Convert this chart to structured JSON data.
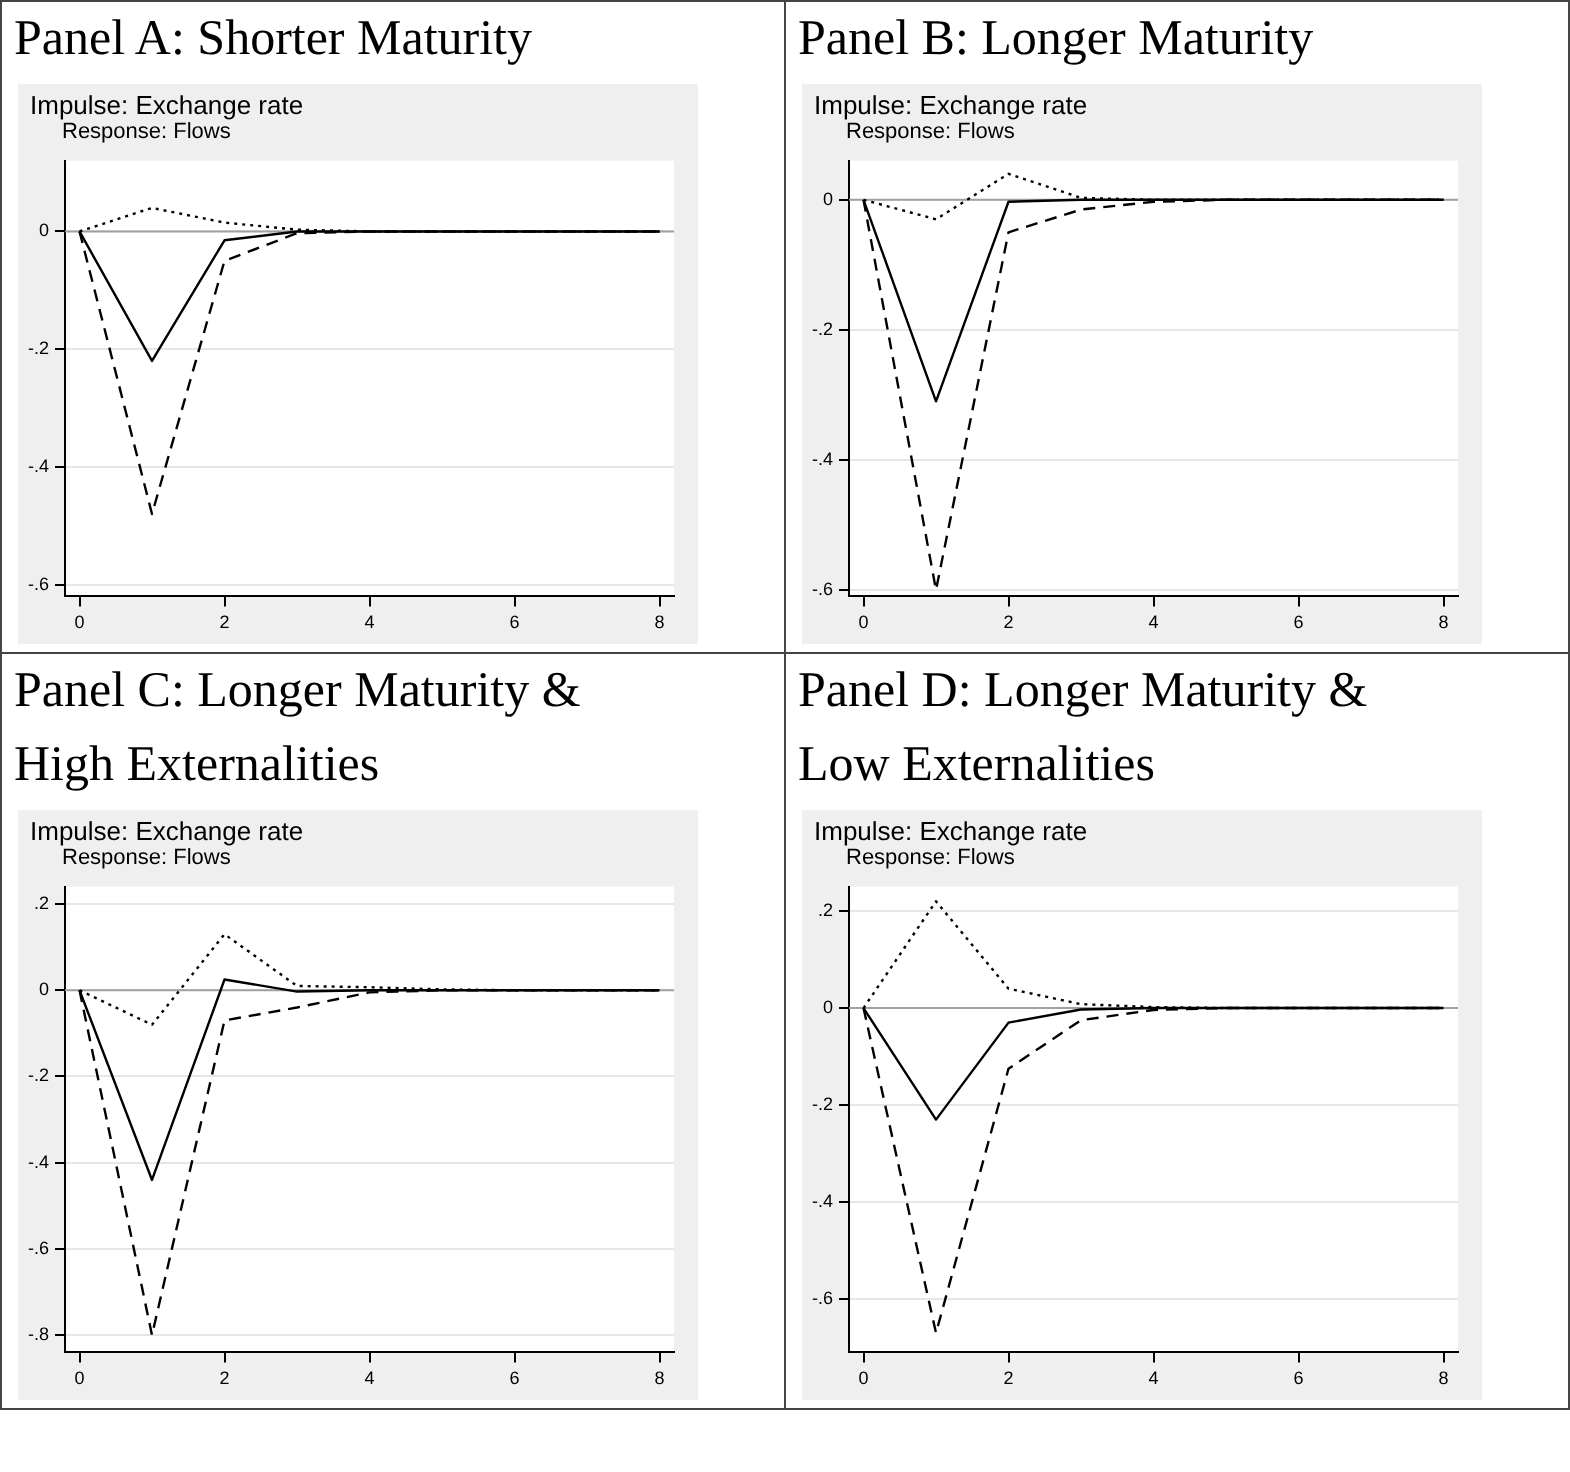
{
  "chart_data": [
    {
      "type": "line",
      "title": "Panel A: Shorter Maturity",
      "subtitle": "Impulse: Exchange rate",
      "annotations": [
        "Response: Flows"
      ],
      "x": [
        0,
        1,
        2,
        3,
        4,
        5,
        6,
        7,
        8
      ],
      "series": [
        {
          "color": "#000000",
          "line_style": "solid",
          "values": [
            0,
            -0.22,
            -0.015,
            0,
            0,
            0,
            0,
            0,
            0
          ]
        },
        {
          "color": "#000000",
          "line_style": "dashed",
          "values": [
            0,
            -0.48,
            -0.05,
            -0.003,
            0,
            0,
            0,
            0,
            0
          ]
        },
        {
          "color": "#000000",
          "line_style": "dotted",
          "values": [
            0,
            0.04,
            0.015,
            0.003,
            0,
            0,
            0,
            0,
            0
          ]
        }
      ],
      "xlim": [
        -0.2,
        8.2
      ],
      "xticks": [
        0,
        2,
        4,
        6,
        8
      ],
      "ylim": [
        -0.62,
        0.12
      ],
      "yticks": [
        {
          "value": -0.6,
          "label": "-.6"
        },
        {
          "value": -0.4,
          "label": "-.4"
        },
        {
          "value": -0.2,
          "label": "-.2"
        },
        {
          "value": 0,
          "label": "0"
        }
      ],
      "ref_lines": [
        {
          "axis": "y",
          "value": 0,
          "color": "#a0a0a0"
        }
      ],
      "grid": "y"
    },
    {
      "type": "line",
      "title": "Panel B: Longer Maturity",
      "subtitle": "Impulse: Exchange rate",
      "annotations": [
        "Response: Flows"
      ],
      "x": [
        0,
        1,
        2,
        3,
        4,
        5,
        6,
        7,
        8
      ],
      "series": [
        {
          "color": "#000000",
          "line_style": "solid",
          "values": [
            0,
            -0.31,
            -0.003,
            0,
            0,
            0,
            0,
            0,
            0
          ]
        },
        {
          "color": "#000000",
          "line_style": "dashed",
          "values": [
            0,
            -0.6,
            -0.05,
            -0.015,
            -0.003,
            0,
            0,
            0,
            0
          ]
        },
        {
          "color": "#000000",
          "line_style": "dotted",
          "values": [
            0,
            -0.03,
            0.04,
            0.003,
            0,
            0,
            0,
            0,
            0
          ]
        }
      ],
      "xlim": [
        -0.2,
        8.2
      ],
      "xticks": [
        0,
        2,
        4,
        6,
        8
      ],
      "ylim": [
        -0.61,
        0.06
      ],
      "yticks": [
        {
          "value": -0.6,
          "label": "-.6"
        },
        {
          "value": -0.4,
          "label": "-.4"
        },
        {
          "value": -0.2,
          "label": "-.2"
        },
        {
          "value": 0,
          "label": "0"
        }
      ],
      "ref_lines": [
        {
          "axis": "y",
          "value": 0,
          "color": "#a0a0a0"
        }
      ],
      "grid": "y"
    },
    {
      "type": "line",
      "title": "Panel C: Longer Maturity & High Externalities",
      "subtitle": "Impulse: Exchange rate",
      "annotations": [
        "Response: Flows"
      ],
      "x": [
        0,
        1,
        2,
        3,
        4,
        5,
        6,
        7,
        8
      ],
      "series": [
        {
          "color": "#000000",
          "line_style": "solid",
          "values": [
            0,
            -0.44,
            0.025,
            -0.003,
            0,
            0,
            0,
            0,
            0
          ]
        },
        {
          "color": "#000000",
          "line_style": "dashed",
          "values": [
            0,
            -0.8,
            -0.07,
            -0.04,
            -0.005,
            0,
            0,
            0,
            0
          ]
        },
        {
          "color": "#000000",
          "line_style": "dotted",
          "values": [
            0,
            -0.08,
            0.13,
            0.01,
            0.007,
            0.002,
            0,
            0,
            0
          ]
        }
      ],
      "xlim": [
        -0.2,
        8.2
      ],
      "xticks": [
        0,
        2,
        4,
        6,
        8
      ],
      "ylim": [
        -0.84,
        0.24
      ],
      "yticks": [
        {
          "value": -0.8,
          "label": "-.8"
        },
        {
          "value": -0.6,
          "label": "-.6"
        },
        {
          "value": -0.4,
          "label": "-.4"
        },
        {
          "value": -0.2,
          "label": "-.2"
        },
        {
          "value": 0,
          "label": "0"
        },
        {
          "value": 0.2,
          "label": ".2"
        }
      ],
      "ref_lines": [
        {
          "axis": "y",
          "value": 0,
          "color": "#a0a0a0"
        }
      ],
      "grid": "y"
    },
    {
      "type": "line",
      "title": "Panel D: Longer Maturity & Low Externalities",
      "subtitle": "Impulse: Exchange rate",
      "annotations": [
        "Response: Flows"
      ],
      "x": [
        0,
        1,
        2,
        3,
        4,
        5,
        6,
        7,
        8
      ],
      "series": [
        {
          "color": "#000000",
          "line_style": "solid",
          "values": [
            0,
            -0.23,
            -0.03,
            -0.003,
            0,
            0,
            0,
            0,
            0
          ]
        },
        {
          "color": "#000000",
          "line_style": "dashed",
          "values": [
            0,
            -0.67,
            -0.125,
            -0.025,
            -0.004,
            0,
            0,
            0,
            0
          ]
        },
        {
          "color": "#000000",
          "line_style": "dotted",
          "values": [
            0,
            0.22,
            0.04,
            0.008,
            0.002,
            0,
            0,
            0,
            0
          ]
        }
      ],
      "xlim": [
        -0.2,
        8.2
      ],
      "xticks": [
        0,
        2,
        4,
        6,
        8
      ],
      "ylim": [
        -0.71,
        0.25
      ],
      "yticks": [
        {
          "value": -0.6,
          "label": "-.6"
        },
        {
          "value": -0.4,
          "label": "-.4"
        },
        {
          "value": -0.2,
          "label": "-.2"
        },
        {
          "value": 0,
          "label": "0"
        },
        {
          "value": 0.2,
          "label": ".2"
        }
      ],
      "ref_lines": [
        {
          "axis": "y",
          "value": 0,
          "color": "#a0a0a0"
        }
      ],
      "grid": "y"
    }
  ]
}
